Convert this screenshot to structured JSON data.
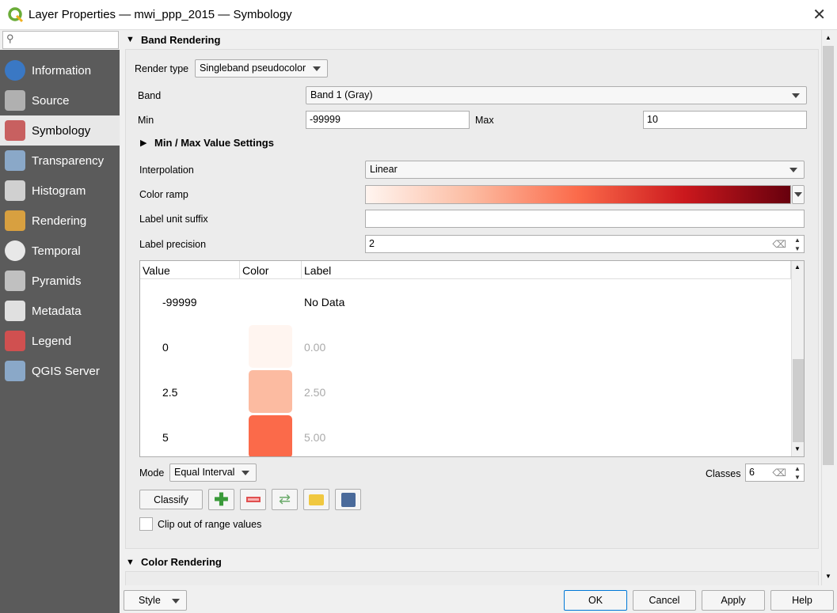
{
  "window": {
    "title": "Layer Properties — mwi_ppp_2015 — Symbology",
    "close": "✕"
  },
  "sidebar": {
    "search_placeholder": "",
    "items": [
      {
        "label": "Information",
        "icon": "info-icon",
        "color": "#3a78c4"
      },
      {
        "label": "Source",
        "icon": "wrench-gear-icon",
        "color": "#b0b0b0"
      },
      {
        "label": "Symbology",
        "icon": "paintbrush-icon",
        "color": "#c86060",
        "selected": true
      },
      {
        "label": "Transparency",
        "icon": "transparency-icon",
        "color": "#8aa8c8"
      },
      {
        "label": "Histogram",
        "icon": "histogram-icon",
        "color": "#d0d0d0"
      },
      {
        "label": "Rendering",
        "icon": "brush-icon",
        "color": "#d8a040"
      },
      {
        "label": "Temporal",
        "icon": "clock-icon",
        "color": "#e8e8e8"
      },
      {
        "label": "Pyramids",
        "icon": "pyramid-icon",
        "color": "#c0c0c0"
      },
      {
        "label": "Metadata",
        "icon": "metadata-icon",
        "color": "#e0e0e0"
      },
      {
        "label": "Legend",
        "icon": "legend-icon",
        "color": "#d05050"
      },
      {
        "label": "QGIS Server",
        "icon": "server-icon",
        "color": "#8aa8c8"
      }
    ]
  },
  "band_rendering": {
    "header": "Band Rendering",
    "render_type_label": "Render type",
    "render_type": "Singleband pseudocolor",
    "band_label": "Band",
    "band": "Band 1 (Gray)",
    "min_label": "Min",
    "min": "-99999",
    "max_label": "Max",
    "max": "10",
    "minmax_header": "Min / Max Value Settings",
    "interpolation_label": "Interpolation",
    "interpolation": "Linear",
    "color_ramp_label": "Color ramp",
    "color_ramp_colors": [
      "#fff5f0",
      "#fcbba1",
      "#fb6a4a",
      "#cb181d",
      "#67000d"
    ],
    "label_suffix_label": "Label unit suffix",
    "label_suffix": "",
    "label_precision_label": "Label precision",
    "label_precision": "2",
    "table": {
      "headers": [
        "Value",
        "Color",
        "Label"
      ],
      "rows": [
        {
          "value": "-99999",
          "color": "",
          "label": "No Data"
        },
        {
          "value": "0",
          "color": "#fff5f0",
          "label": "0.00"
        },
        {
          "value": "2.5",
          "color": "#fcbba1",
          "label": "2.50"
        },
        {
          "value": "5",
          "color": "#fb6a4a",
          "label": "5.00"
        }
      ]
    },
    "mode_label": "Mode",
    "mode": "Equal Interval",
    "classes_label": "Classes",
    "classes": "6",
    "classify": "Classify",
    "clip_label": "Clip out of range values",
    "clip_checked": false
  },
  "color_rendering": {
    "header": "Color Rendering"
  },
  "footer": {
    "style": "Style",
    "ok": "OK",
    "cancel": "Cancel",
    "apply": "Apply",
    "help": "Help"
  }
}
